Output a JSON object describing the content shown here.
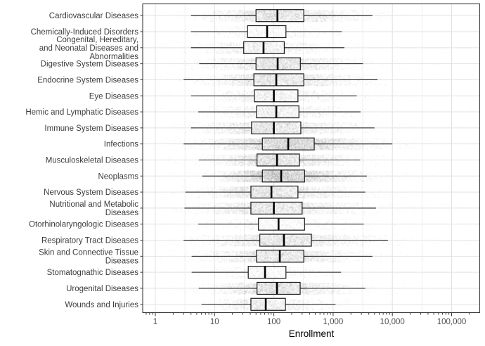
{
  "chart_data": {
    "type": "boxplot",
    "orientation": "horizontal",
    "title": "",
    "xlabel": "Enrollment",
    "ylabel": "",
    "x_scale": "log10",
    "x_range": [
      0.62,
      290000
    ],
    "grid": "major and minor vertical gridlines (log decades and half-decades), major horizontal gridline per category",
    "legend": "none",
    "overlay": "semi-transparent jittered data points per category (outliers shown as points, no outlier glyphs on boxes)",
    "x_axis_ticks": [
      {
        "value": 1,
        "label": "1"
      },
      {
        "value": 10,
        "label": "10"
      },
      {
        "value": 100,
        "label": "100"
      },
      {
        "value": 1000,
        "label": "1,000"
      },
      {
        "value": 10000,
        "label": "10,000"
      },
      {
        "value": 100000,
        "label": "100,000"
      }
    ],
    "series": [
      {
        "label": "Cardiovascular Diseases",
        "label_lines": [
          "Cardiovascular Diseases"
        ],
        "whisker_low": 4,
        "q1": 50,
        "median": 115,
        "q3": 320,
        "whisker_high": 4600,
        "point_density": "high"
      },
      {
        "label": "Chemically-Induced Disorders",
        "label_lines": [
          "Chemically-Induced Disorders"
        ],
        "whisker_low": 4,
        "q1": 36,
        "median": 77,
        "q3": 160,
        "whisker_high": 1400,
        "point_density": "low"
      },
      {
        "label": "Congenital, Hereditary, and Neonatal Diseases and Abnormalities",
        "label_lines": [
          "Congenital, Hereditary,",
          "and Neonatal Diseases and",
          "Abnormalities"
        ],
        "whisker_low": 4,
        "q1": 31,
        "median": 67,
        "q3": 150,
        "whisker_high": 1550,
        "point_density": "medium"
      },
      {
        "label": "Digestive System Diseases",
        "label_lines": [
          "Digestive System Diseases"
        ],
        "whisker_low": 5.5,
        "q1": 50,
        "median": 116,
        "q3": 280,
        "whisker_high": 3200,
        "point_density": "high"
      },
      {
        "label": "Endocrine System Diseases",
        "label_lines": [
          "Endocrine System Diseases"
        ],
        "whisker_low": 3,
        "q1": 46,
        "median": 110,
        "q3": 320,
        "whisker_high": 5600,
        "point_density": "high"
      },
      {
        "label": "Eye Diseases",
        "label_lines": [
          "Eye Diseases"
        ],
        "whisker_low": 4,
        "q1": 47,
        "median": 100,
        "q3": 255,
        "whisker_high": 2500,
        "point_density": "medium"
      },
      {
        "label": "Hemic and Lymphatic Diseases",
        "label_lines": [
          "Hemic and Lymphatic Diseases"
        ],
        "whisker_low": 5.3,
        "q1": 51,
        "median": 110,
        "q3": 265,
        "whisker_high": 2900,
        "point_density": "medium"
      },
      {
        "label": "Immune System Diseases",
        "label_lines": [
          "Immune System Diseases"
        ],
        "whisker_low": 4,
        "q1": 42,
        "median": 100,
        "q3": 285,
        "whisker_high": 5000,
        "point_density": "high"
      },
      {
        "label": "Infections",
        "label_lines": [
          "Infections"
        ],
        "whisker_low": 3,
        "q1": 64,
        "median": 175,
        "q3": 480,
        "whisker_high": 10000,
        "point_density": "very_high"
      },
      {
        "label": "Musculoskeletal Diseases",
        "label_lines": [
          "Musculoskeletal Diseases"
        ],
        "whisker_low": 5.4,
        "q1": 52,
        "median": 113,
        "q3": 270,
        "whisker_high": 2850,
        "point_density": "high"
      },
      {
        "label": "Neoplasms",
        "label_lines": [
          "Neoplasms"
        ],
        "whisker_low": 6.2,
        "q1": 64,
        "median": 133,
        "q3": 330,
        "whisker_high": 3700,
        "point_density": "very_high"
      },
      {
        "label": "Nervous System Diseases",
        "label_lines": [
          "Nervous System Diseases"
        ],
        "whisker_low": 3.2,
        "q1": 41,
        "median": 91,
        "q3": 255,
        "whisker_high": 3500,
        "point_density": "high"
      },
      {
        "label": "Nutritional and Metabolic Diseases",
        "label_lines": [
          "Nutritional and Metabolic",
          "Diseases"
        ],
        "whisker_low": 3.1,
        "q1": 41,
        "median": 100,
        "q3": 300,
        "whisker_high": 5300,
        "point_density": "high"
      },
      {
        "label": "Otorhinolaryngologic Diseases",
        "label_lines": [
          "Otorhinolaryngologic Diseases"
        ],
        "whisker_low": 5.3,
        "q1": 55,
        "median": 120,
        "q3": 330,
        "whisker_high": 3300,
        "point_density": "low"
      },
      {
        "label": "Respiratory Tract Diseases",
        "label_lines": [
          "Respiratory Tract Diseases"
        ],
        "whisker_low": 3,
        "q1": 58,
        "median": 148,
        "q3": 430,
        "whisker_high": 8400,
        "point_density": "high"
      },
      {
        "label": "Skin and Connective Tissue Diseases",
        "label_lines": [
          "Skin and Connective Tissue",
          "Diseases"
        ],
        "whisker_low": 4.1,
        "q1": 51,
        "median": 126,
        "q3": 320,
        "whisker_high": 4600,
        "point_density": "high"
      },
      {
        "label": "Stomatognathic Diseases",
        "label_lines": [
          "Stomatognathic Diseases"
        ],
        "whisker_low": 4.1,
        "q1": 37,
        "median": 71,
        "q3": 160,
        "whisker_high": 1360,
        "point_density": "low"
      },
      {
        "label": "Urogenital Diseases",
        "label_lines": [
          "Urogenital Diseases"
        ],
        "whisker_low": 5.4,
        "q1": 52,
        "median": 113,
        "q3": 278,
        "whisker_high": 3500,
        "point_density": "high"
      },
      {
        "label": "Wounds and Injuries",
        "label_lines": [
          "Wounds and Injuries"
        ],
        "whisker_low": 6,
        "q1": 41,
        "median": 73,
        "q3": 157,
        "whisker_high": 1100,
        "point_density": "medium"
      }
    ]
  },
  "colors": {
    "background": "#ffffff",
    "panel_border": "#3c3c3c",
    "grid_major": "#e2e2e2",
    "grid_minor": "#ededed",
    "box_stroke": "#1a1a1a",
    "box_fill": "#ffffff",
    "median": "#000000",
    "whisker": "#1a1a1a",
    "points": "rgba(0,0,0,0.085)",
    "axis_text": "#4d4d4d",
    "category_text": "#3d3d3d",
    "tick_mark": "#333333",
    "axis_title": "#000000"
  }
}
